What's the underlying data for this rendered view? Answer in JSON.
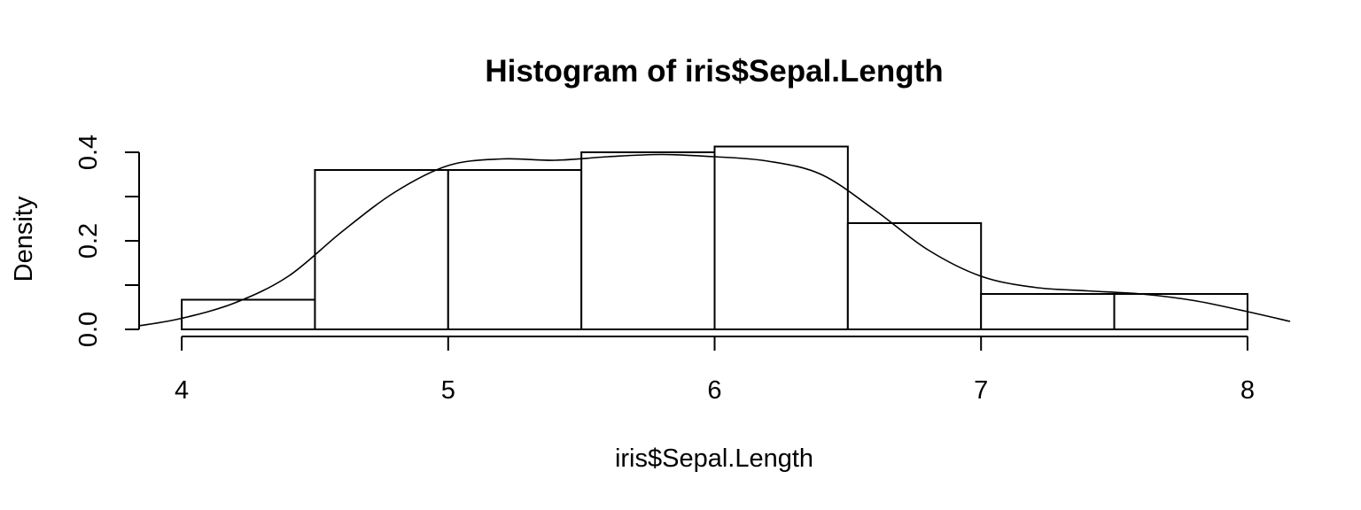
{
  "chart_data": {
    "type": "bar",
    "title": "Histogram of iris$Sepal.Length",
    "xlabel": "iris$Sepal.Length",
    "ylabel": "Density",
    "bins": [
      {
        "x0": 4.0,
        "x1": 4.5,
        "density": 0.067
      },
      {
        "x0": 4.5,
        "x1": 5.0,
        "density": 0.36
      },
      {
        "x0": 5.0,
        "x1": 5.5,
        "density": 0.36
      },
      {
        "x0": 5.5,
        "x1": 6.0,
        "density": 0.4
      },
      {
        "x0": 6.0,
        "x1": 6.5,
        "density": 0.413
      },
      {
        "x0": 6.5,
        "x1": 7.0,
        "density": 0.24
      },
      {
        "x0": 7.0,
        "x1": 7.5,
        "density": 0.08
      },
      {
        "x0": 7.5,
        "x1": 8.0,
        "density": 0.08
      }
    ],
    "xticks": [
      4,
      5,
      6,
      7,
      8
    ],
    "xtick_labels": [
      "4",
      "5",
      "6",
      "7",
      "8"
    ],
    "yticks": [
      0.0,
      0.1,
      0.2,
      0.3,
      0.4
    ],
    "ytick_labels": [
      "0.0",
      "",
      "0.2",
      "",
      "0.4"
    ],
    "xlim": [
      3.84,
      8.16
    ],
    "ylim": [
      0,
      0.43
    ],
    "density_curve": {
      "x": [
        3.84,
        4.0,
        4.2,
        4.4,
        4.6,
        4.8,
        5.0,
        5.2,
        5.4,
        5.6,
        5.8,
        6.0,
        6.2,
        6.4,
        6.6,
        6.8,
        7.0,
        7.2,
        7.4,
        7.6,
        7.8,
        8.0,
        8.16
      ],
      "y": [
        0.008,
        0.025,
        0.06,
        0.12,
        0.22,
        0.31,
        0.37,
        0.385,
        0.382,
        0.39,
        0.395,
        0.39,
        0.38,
        0.35,
        0.27,
        0.18,
        0.12,
        0.095,
        0.087,
        0.08,
        0.065,
        0.04,
        0.018
      ]
    },
    "grid": false,
    "legend": "none"
  }
}
